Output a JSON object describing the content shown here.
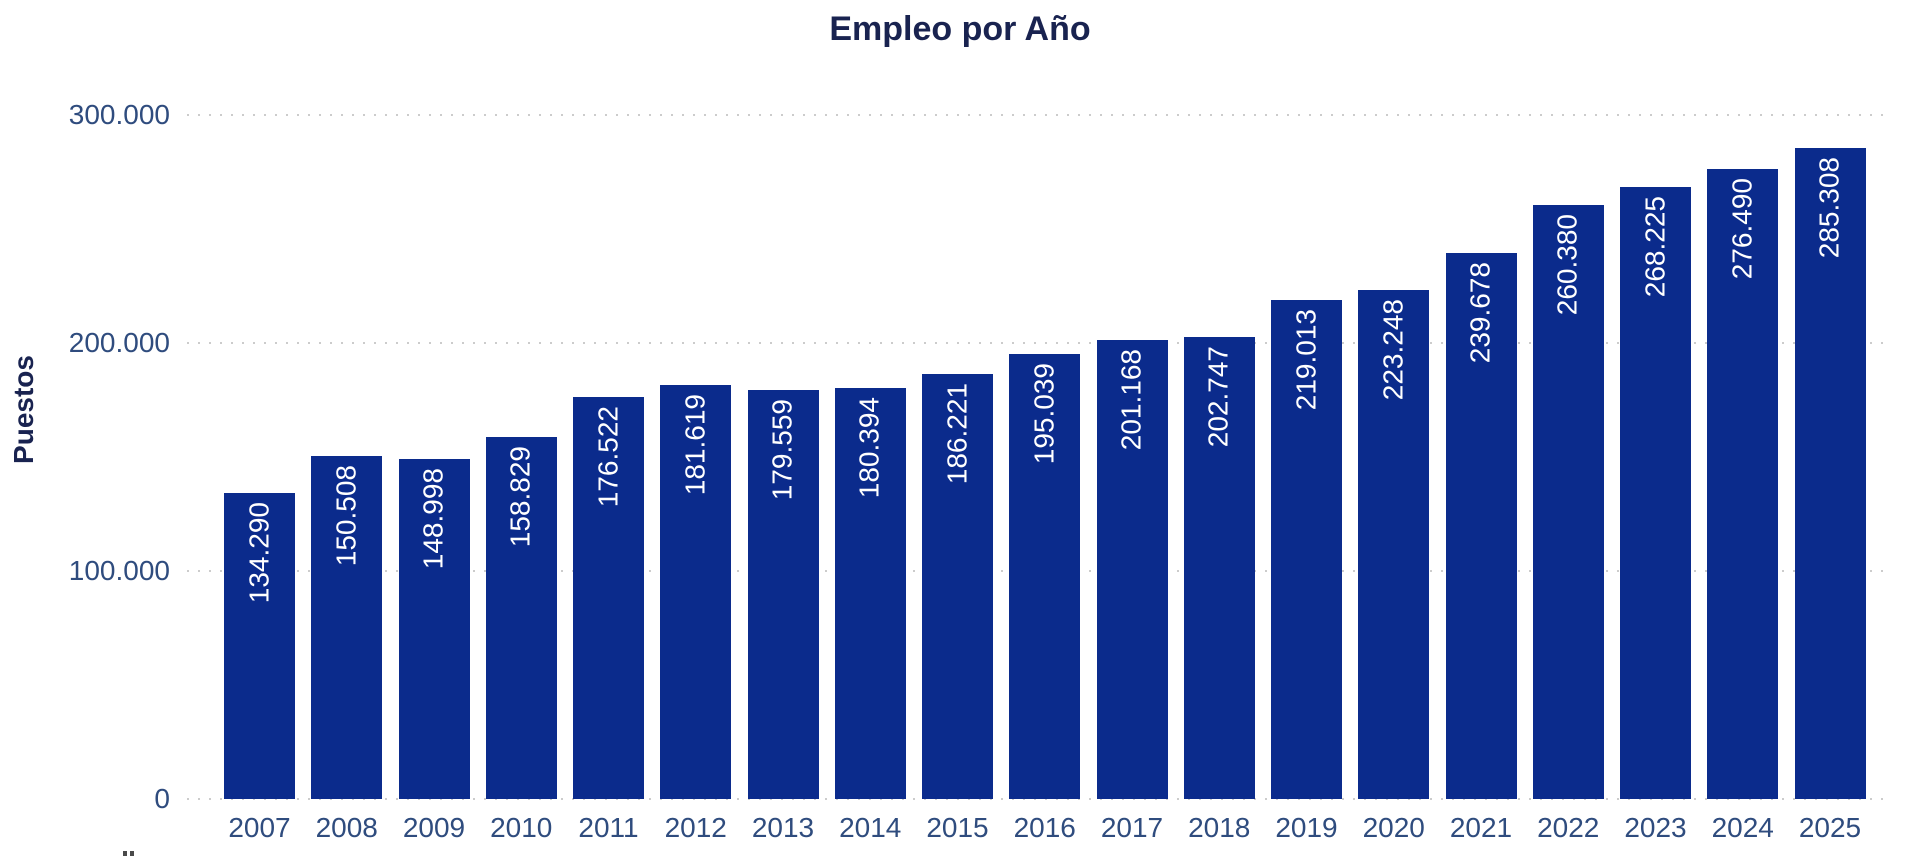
{
  "chart_data": {
    "type": "bar",
    "title": "Empleo por Año",
    "xlabel": "",
    "ylabel": "Puestos",
    "categories": [
      "2007",
      "2008",
      "2009",
      "2010",
      "2011",
      "2012",
      "2013",
      "2014",
      "2015",
      "2016",
      "2017",
      "2018",
      "2019",
      "2020",
      "2021",
      "2022",
      "2023",
      "2024",
      "2025"
    ],
    "values": [
      134290,
      150508,
      148998,
      158829,
      176522,
      181619,
      179559,
      180394,
      186221,
      195039,
      201168,
      202747,
      219013,
      223248,
      239678,
      260380,
      268225,
      276490,
      285308
    ],
    "value_labels": [
      "134.290",
      "150.508",
      "148.998",
      "158.829",
      "176.522",
      "181.619",
      "179.559",
      "180.394",
      "186.221",
      "195.039",
      "201.168",
      "202.747",
      "219.013",
      "223.248",
      "239.678",
      "260.380",
      "268.225",
      "276.490",
      "285.308"
    ],
    "y_ticks": [
      "300.000",
      "200.000",
      "100.000",
      "0"
    ],
    "y_tick_values": [
      300000,
      200000,
      100000,
      0
    ],
    "ylim": [
      0,
      300000
    ],
    "grid": "dotted horizontal",
    "legend": "none",
    "colors": {
      "bar": "#0b2b8c",
      "title": "#192350",
      "axis_text": "#2f4c7e",
      "gridline": "#cccccc",
      "value_label": "#ffffff",
      "background": "#ffffff"
    }
  }
}
